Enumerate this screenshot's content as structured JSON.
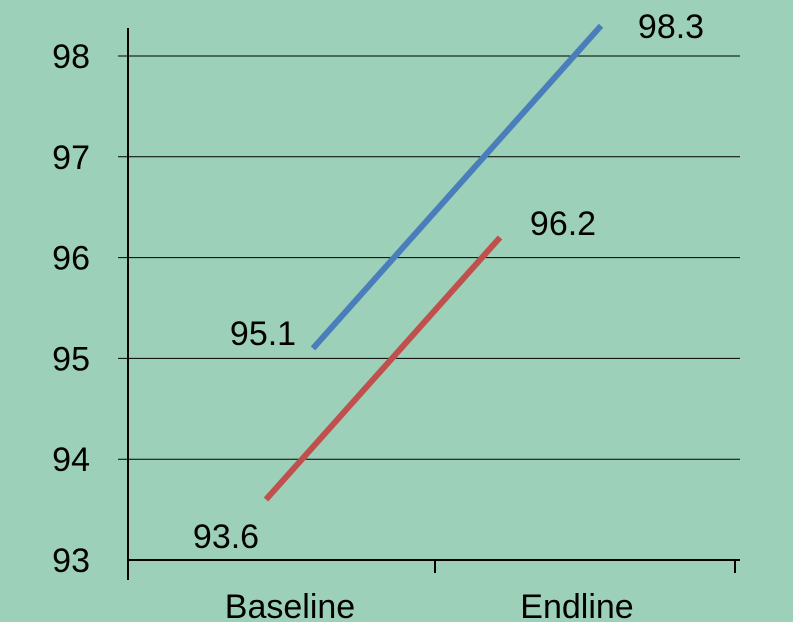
{
  "chart_data": {
    "type": "line",
    "categories": [
      "Baseline",
      "Endline"
    ],
    "series": [
      {
        "values": [
          95.1,
          98.3
        ],
        "color": "#4a7ebb"
      },
      {
        "values": [
          93.6,
          96.2
        ],
        "color": "#c0504d"
      }
    ],
    "ylim": [
      93,
      98
    ],
    "yticks": [
      "98",
      "97",
      "96",
      "95",
      "94",
      "93"
    ],
    "data_labels": {
      "s0_p0": "95.1",
      "s0_p1": "98.3",
      "s1_p0": "93.6",
      "s1_p1": "96.2"
    },
    "grid": true,
    "background": "#9dd0b8"
  }
}
